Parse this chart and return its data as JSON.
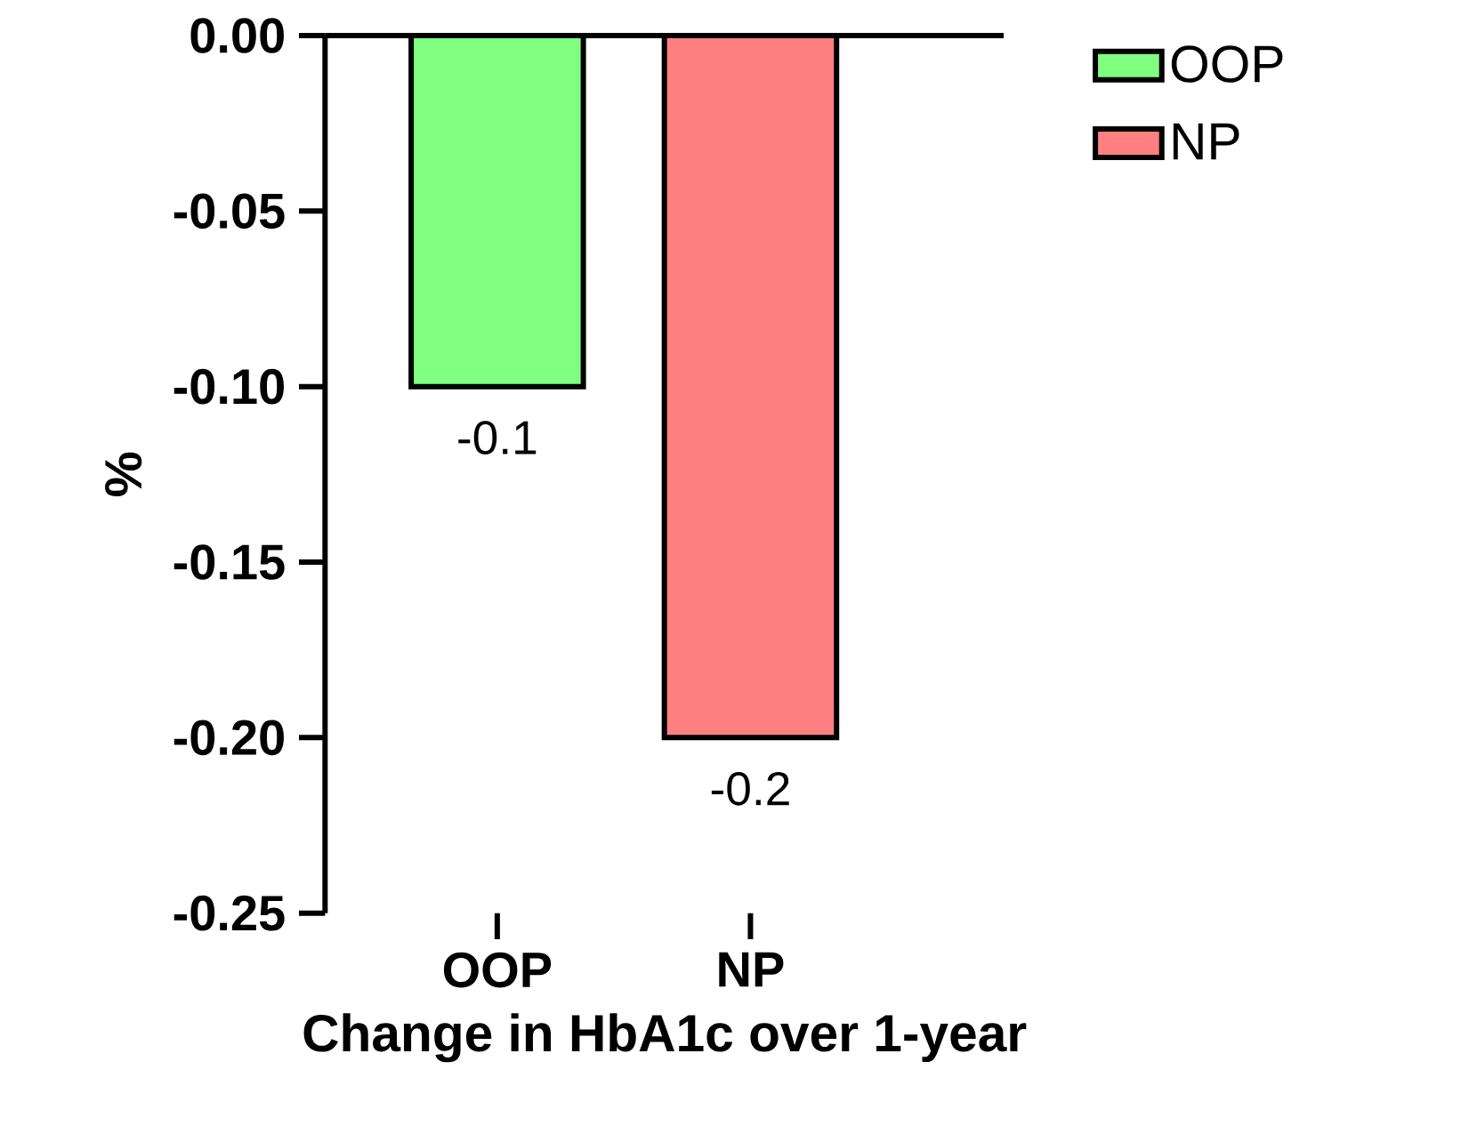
{
  "chart_data": {
    "type": "bar",
    "xlabel": "Change in HbA1c over 1-year",
    "ylabel": "%",
    "categories": [
      "OOP",
      "NP"
    ],
    "series": [
      {
        "name": "OOP",
        "color": "#80ff80",
        "values": [
          -0.1,
          null
        ]
      },
      {
        "name": "NP",
        "color": "#ff8080",
        "values": [
          null,
          -0.2
        ]
      }
    ],
    "ylim": [
      -0.25,
      0
    ],
    "yticks": [
      {
        "value": 0,
        "label": "0.00"
      },
      {
        "value": -0.05,
        "label": "-0.05"
      },
      {
        "value": -0.1,
        "label": "-0.10"
      },
      {
        "value": -0.15,
        "label": "-0.15"
      },
      {
        "value": -0.2,
        "label": "-0.20"
      },
      {
        "value": -0.25,
        "label": "-0.25"
      }
    ],
    "data_labels": true,
    "legend": "top right",
    "grid": false
  }
}
